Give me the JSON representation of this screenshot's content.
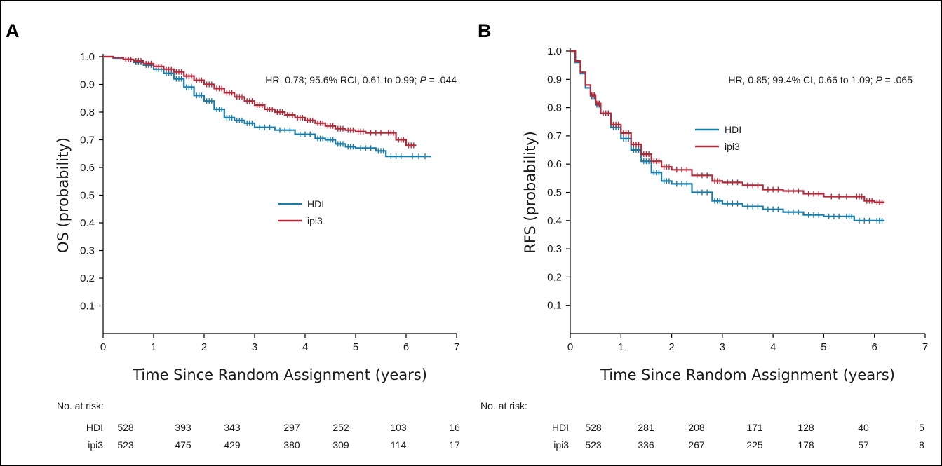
{
  "chart_data": [
    {
      "panel": "A",
      "type": "line",
      "ylabel": "OS (probability)",
      "xlabel": "Time Since Random Assignment (years)",
      "xlim": [
        0,
        7
      ],
      "ylim": [
        0,
        1.0
      ],
      "xticks": [
        "0",
        "1",
        "2",
        "3",
        "4",
        "5",
        "6",
        "7"
      ],
      "yticks": [
        "0.1",
        "0.2",
        "0.3",
        "0.4",
        "0.5",
        "0.6",
        "0.7",
        "0.8",
        "0.9",
        "1.0"
      ],
      "annotation": {
        "pre": "HR, 0.78; 95.6% RCI, 0.61 to 0.99; ",
        "p_label": "P",
        "post": " = .044"
      },
      "legend": {
        "position": "center",
        "entries": [
          "HDI",
          "ipi3"
        ]
      },
      "series": [
        {
          "name": "HDI",
          "color": "#1a7ba6",
          "x": [
            0,
            0.2,
            0.4,
            0.6,
            0.8,
            1.0,
            1.2,
            1.4,
            1.6,
            1.8,
            2.0,
            2.2,
            2.4,
            2.6,
            2.8,
            3.0,
            3.4,
            3.8,
            4.2,
            4.4,
            4.6,
            4.8,
            5.0,
            5.4,
            5.6,
            6.0,
            6.5
          ],
          "y": [
            1.0,
            0.995,
            0.99,
            0.98,
            0.97,
            0.955,
            0.94,
            0.92,
            0.89,
            0.86,
            0.84,
            0.81,
            0.78,
            0.77,
            0.76,
            0.745,
            0.735,
            0.72,
            0.705,
            0.7,
            0.685,
            0.675,
            0.67,
            0.66,
            0.64,
            0.64,
            0.64
          ]
        },
        {
          "name": "ipi3",
          "color": "#b02a3a",
          "x": [
            0,
            0.2,
            0.4,
            0.6,
            0.8,
            1.0,
            1.2,
            1.4,
            1.6,
            1.8,
            2.0,
            2.2,
            2.4,
            2.6,
            2.8,
            3.0,
            3.2,
            3.4,
            3.6,
            3.8,
            4.0,
            4.2,
            4.4,
            4.6,
            4.8,
            5.0,
            5.2,
            5.6,
            5.8,
            6.0,
            6.2
          ],
          "y": [
            1.0,
            0.997,
            0.99,
            0.985,
            0.975,
            0.965,
            0.955,
            0.945,
            0.93,
            0.915,
            0.9,
            0.885,
            0.87,
            0.855,
            0.84,
            0.825,
            0.81,
            0.8,
            0.79,
            0.78,
            0.77,
            0.76,
            0.75,
            0.74,
            0.735,
            0.73,
            0.725,
            0.725,
            0.7,
            0.68,
            0.68
          ]
        }
      ],
      "at_risk": {
        "title": "No. at risk:",
        "rows": [
          {
            "label": "HDI",
            "values": [
              "528",
              "393",
              "343",
              "297",
              "252",
              "103",
              "16"
            ]
          },
          {
            "label": "ipi3",
            "values": [
              "523",
              "475",
              "429",
              "380",
              "309",
              "114",
              "17"
            ]
          }
        ]
      }
    },
    {
      "panel": "B",
      "type": "line",
      "ylabel": "RFS (probability)",
      "xlabel": "Time Since Random Assignment (years)",
      "xlim": [
        0,
        7
      ],
      "ylim": [
        0,
        1.0
      ],
      "xticks": [
        "0",
        "1",
        "2",
        "3",
        "4",
        "5",
        "6",
        "7"
      ],
      "yticks": [
        "0.1",
        "0.2",
        "0.3",
        "0.4",
        "0.5",
        "0.6",
        "0.7",
        "0.8",
        "0.9",
        "1.0"
      ],
      "annotation": {
        "pre": "HR, 0.85; 99.4% CI, 0.66 to 1.09; ",
        "p_label": "P",
        "post": " = .065"
      },
      "legend": {
        "position": "upper-center",
        "entries": [
          "HDI",
          "ipi3"
        ]
      },
      "series": [
        {
          "name": "HDI",
          "color": "#1a7ba6",
          "x": [
            0,
            0.1,
            0.2,
            0.3,
            0.4,
            0.5,
            0.6,
            0.8,
            1.0,
            1.2,
            1.4,
            1.6,
            1.8,
            2.0,
            2.4,
            2.8,
            3.0,
            3.4,
            3.8,
            4.2,
            4.6,
            5.0,
            5.4,
            5.6,
            6.0,
            6.2
          ],
          "y": [
            1.0,
            0.96,
            0.92,
            0.87,
            0.84,
            0.81,
            0.78,
            0.73,
            0.69,
            0.65,
            0.61,
            0.57,
            0.54,
            0.53,
            0.5,
            0.47,
            0.46,
            0.45,
            0.44,
            0.43,
            0.42,
            0.415,
            0.415,
            0.4,
            0.4,
            0.4
          ]
        },
        {
          "name": "ipi3",
          "color": "#b02a3a",
          "x": [
            0,
            0.1,
            0.2,
            0.3,
            0.4,
            0.5,
            0.6,
            0.8,
            1.0,
            1.2,
            1.4,
            1.6,
            1.8,
            2.0,
            2.4,
            2.8,
            3.0,
            3.4,
            3.8,
            4.2,
            4.6,
            5.0,
            5.6,
            5.8,
            6.0,
            6.2
          ],
          "y": [
            1.0,
            0.965,
            0.925,
            0.88,
            0.845,
            0.815,
            0.78,
            0.74,
            0.71,
            0.67,
            0.635,
            0.61,
            0.59,
            0.58,
            0.56,
            0.54,
            0.535,
            0.525,
            0.51,
            0.505,
            0.495,
            0.485,
            0.485,
            0.47,
            0.465,
            0.465
          ]
        }
      ],
      "at_risk": {
        "title": "No. at risk:",
        "rows": [
          {
            "label": "HDI",
            "values": [
              "528",
              "281",
              "208",
              "171",
              "128",
              "40",
              "5"
            ]
          },
          {
            "label": "ipi3",
            "values": [
              "523",
              "336",
              "267",
              "225",
              "178",
              "57",
              "8"
            ]
          }
        ]
      }
    }
  ]
}
